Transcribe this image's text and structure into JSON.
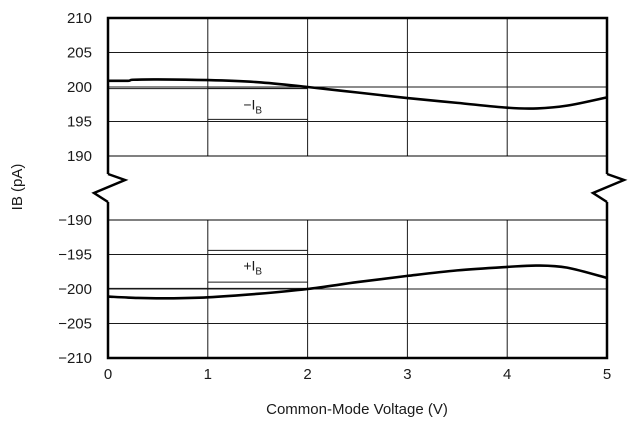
{
  "chart_data": {
    "type": "line",
    "xlabel": "Common-Mode Voltage (V)",
    "ylabel": "IB (pA)",
    "xlim": [
      0,
      5
    ],
    "x_ticks": [
      "0",
      "1",
      "2",
      "3",
      "4",
      "5"
    ],
    "broken_y_axis": true,
    "panels": [
      {
        "name": "upper",
        "ylim": [
          190,
          210
        ],
        "y_ticks": [
          "210",
          "205",
          "200",
          "195",
          "190"
        ]
      },
      {
        "name": "lower",
        "ylim": [
          -210,
          -190
        ],
        "y_ticks": [
          "-190",
          "-195",
          "-200",
          "-205",
          "-210"
        ]
      }
    ],
    "series": [
      {
        "name": "-IB",
        "panel": "upper",
        "x": [
          0,
          0.2,
          0.25,
          0.5,
          1.0,
          1.5,
          2.0,
          2.5,
          3.0,
          3.5,
          4.0,
          4.3,
          4.6,
          5.0
        ],
        "y": [
          200.9,
          200.9,
          201.05,
          201.1,
          201.0,
          200.7,
          200.0,
          199.2,
          198.4,
          197.7,
          197.0,
          196.9,
          197.3,
          198.5
        ]
      },
      {
        "name": "+IB",
        "panel": "lower",
        "x": [
          0,
          0.3,
          0.6,
          1.0,
          1.5,
          2.0,
          2.5,
          3.0,
          3.5,
          4.0,
          4.3,
          4.6,
          5.0
        ],
        "y": [
          -201.1,
          -201.3,
          -201.35,
          -201.2,
          -200.7,
          -200.0,
          -199.0,
          -198.1,
          -197.3,
          -196.8,
          -196.6,
          -196.9,
          -198.4
        ]
      }
    ],
    "annotations": [
      {
        "text": "−IB",
        "panel": "upper",
        "x": 1.45,
        "y": 197.5
      },
      {
        "text": "+IB",
        "panel": "lower",
        "x": 1.45,
        "y": -196.6
      }
    ],
    "grid": true
  }
}
